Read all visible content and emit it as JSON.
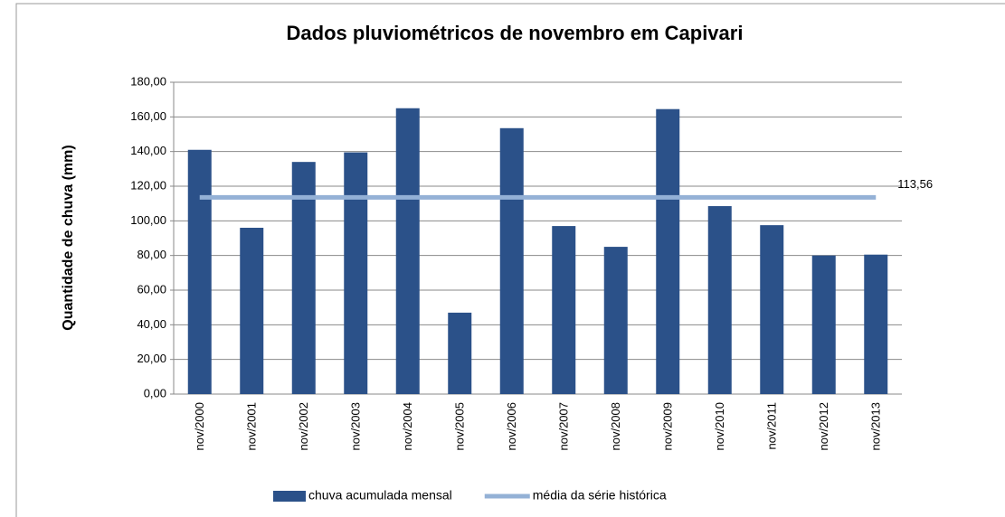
{
  "chart_data": {
    "type": "bar",
    "title": "Dados pluviométricos de novembro em Capivari",
    "y_label": "Quantidade de chuva (mm)",
    "categories": [
      "nov/2000",
      "nov/2001",
      "nov/2002",
      "nov/2003",
      "nov/2004",
      "nov/2005",
      "nov/2006",
      "nov/2007",
      "nov/2008",
      "nov/2009",
      "nov/2010",
      "nov/2011",
      "nov/2012",
      "nov/2013"
    ],
    "series": [
      {
        "name": "chuva acumulada mensal",
        "type": "bar",
        "color": "#2b5189",
        "values": [
          141,
          96,
          134,
          139.5,
          165,
          47,
          153.5,
          97,
          85,
          164.5,
          108.5,
          97.5,
          80,
          80.5
        ]
      },
      {
        "name": "média da série histórica",
        "type": "line",
        "color": "#94b1d6",
        "values": [
          113.56,
          113.56,
          113.56,
          113.56,
          113.56,
          113.56,
          113.56,
          113.56,
          113.56,
          113.56,
          113.56,
          113.56,
          113.56,
          113.56
        ],
        "value_labels": [
          null,
          null,
          null,
          null,
          null,
          null,
          null,
          null,
          null,
          null,
          null,
          null,
          null,
          "113,56"
        ]
      }
    ],
    "ylim": [
      0,
      180
    ],
    "yticks": [
      {
        "value": 0,
        "label": "0,00"
      },
      {
        "value": 20,
        "label": "20,00"
      },
      {
        "value": 40,
        "label": "40,00"
      },
      {
        "value": 60,
        "label": "60,00"
      },
      {
        "value": 80,
        "label": "80,00"
      },
      {
        "value": 100,
        "label": "100,00"
      },
      {
        "value": 120,
        "label": "120,00"
      },
      {
        "value": 140,
        "label": "140,00"
      },
      {
        "value": 160,
        "label": "160,00"
      },
      {
        "value": 180,
        "label": "180,00"
      }
    ],
    "grid": true,
    "legend": "bottom"
  }
}
